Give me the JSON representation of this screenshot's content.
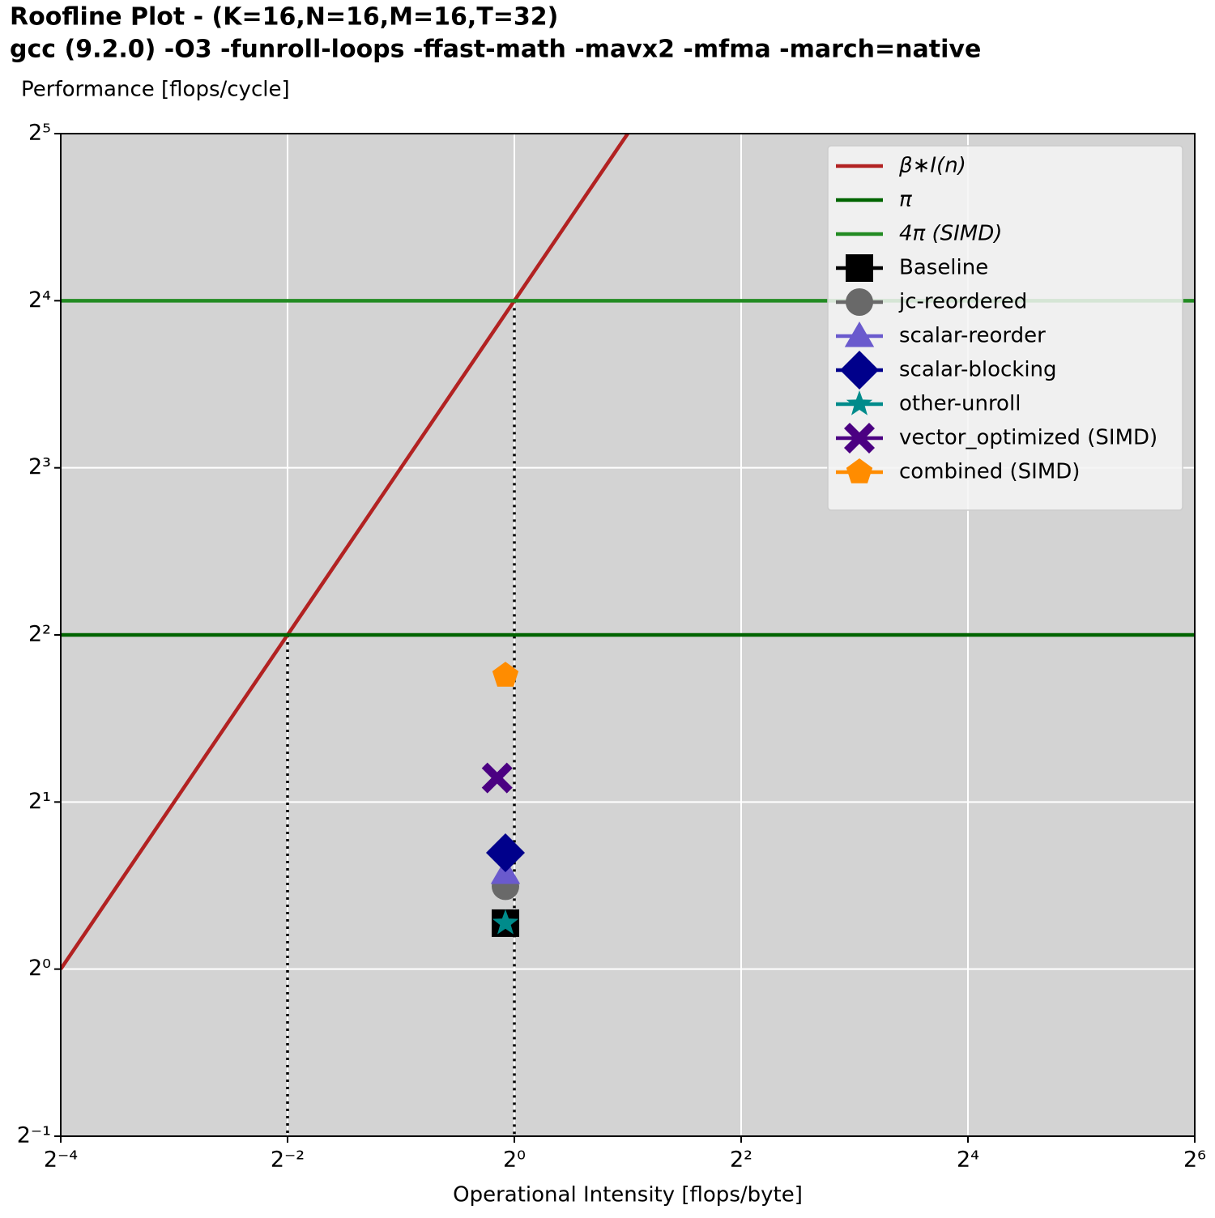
{
  "chart_data": {
    "type": "roofline",
    "title": "Roofline Plot - (K=16,N=16,M=16,T=32)",
    "subtitle": "gcc (9.2.0) -O3 -funroll-loops -ffast-math -mavx2 -mfma -march=native",
    "y_label": "Performance [flops/cycle]",
    "x_label": "Operational Intensity [flops/byte]",
    "log_base": 2,
    "xlim": [
      0.0625,
      64
    ],
    "ylim": [
      0.5,
      32
    ],
    "xticks": [
      {
        "value": 0.0625,
        "label": "2⁻⁴"
      },
      {
        "value": 0.25,
        "label": "2⁻²"
      },
      {
        "value": 1,
        "label": "2⁰"
      },
      {
        "value": 4,
        "label": "2²"
      },
      {
        "value": 16,
        "label": "2⁴"
      },
      {
        "value": 64,
        "label": "2⁶"
      }
    ],
    "yticks": [
      {
        "value": 0.5,
        "label": "2⁻¹"
      },
      {
        "value": 1,
        "label": "2⁰"
      },
      {
        "value": 2,
        "label": "2¹"
      },
      {
        "value": 4,
        "label": "2²"
      },
      {
        "value": 8,
        "label": "2³"
      },
      {
        "value": 16,
        "label": "2⁴"
      },
      {
        "value": 32,
        "label": "2⁵"
      }
    ],
    "grid": true,
    "background": "#d3d3d3",
    "legend": "upper right",
    "lines": [
      {
        "name": "β∗I(n)",
        "color": "#b22222",
        "x": [
          0.0625,
          2
        ],
        "values": [
          1,
          32
        ]
      },
      {
        "name": "π",
        "color": "#006400",
        "x": [
          0.0625,
          64
        ],
        "values": [
          4,
          4
        ]
      },
      {
        "name": "4π (SIMD)",
        "color": "#228b22",
        "x": [
          0.0625,
          64
        ],
        "values": [
          16,
          16
        ]
      }
    ],
    "ridge_points": {
      "color": "#000000",
      "x": [
        0.25,
        1
      ],
      "values": [
        4,
        16
      ]
    },
    "series": [
      {
        "name": "Baseline",
        "color": "#000000",
        "marker": "square",
        "x": [
          0.947
        ],
        "values": [
          1.21
        ]
      },
      {
        "name": "jc-reordered",
        "color": "#696969",
        "marker": "circle",
        "x": [
          0.947
        ],
        "values": [
          1.41
        ]
      },
      {
        "name": "scalar-reorder",
        "color": "#6a5acd",
        "marker": "triangle",
        "x": [
          0.947
        ],
        "values": [
          1.49
        ]
      },
      {
        "name": "scalar-blocking",
        "color": "#00008b",
        "marker": "diamond",
        "x": [
          0.947
        ],
        "values": [
          1.62
        ]
      },
      {
        "name": "other-unroll",
        "color": "#008b8b",
        "marker": "star",
        "x": [
          0.947
        ],
        "values": [
          1.21
        ]
      },
      {
        "name": "vector_optimized (SIMD)",
        "color": "#4b0082",
        "marker": "x",
        "x": [
          0.9
        ],
        "values": [
          2.21
        ]
      },
      {
        "name": "combined (SIMD)",
        "color": "#ff8c00",
        "marker": "pentagon",
        "x": [
          0.947
        ],
        "values": [
          3.38
        ]
      }
    ]
  }
}
